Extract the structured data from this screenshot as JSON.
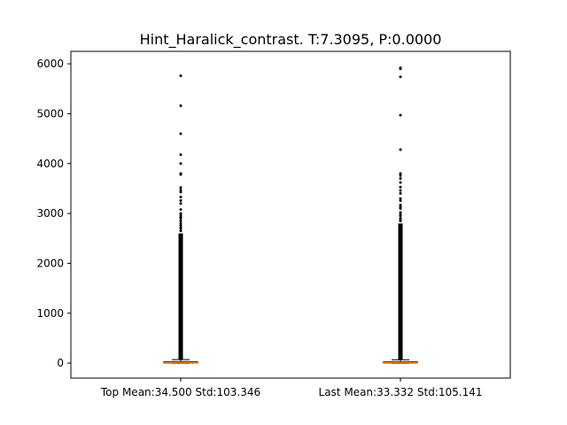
{
  "chart_data": {
    "type": "boxplot",
    "title": "Hint_Haralick_contrast. T:7.3095, P:0.0000",
    "categories": [
      "Top Mean:34.500 Std:103.346",
      "Last Mean:33.332 Std:105.141"
    ],
    "ylim": [
      -300,
      6250
    ],
    "yticks": [
      0,
      1000,
      2000,
      3000,
      4000,
      5000,
      6000
    ],
    "grid": false,
    "series": [
      {
        "q1": 3,
        "median": 12,
        "q3": 30,
        "whisker_low": 0,
        "whisker_high": 70,
        "outlier_max_dense": 2600,
        "outliers": [
          2650,
          2700,
          2720,
          2760,
          2800,
          2850,
          2900,
          2930,
          2960,
          3000,
          3080,
          3200,
          3260,
          3330,
          3430,
          3470,
          3520,
          3780,
          3800,
          4000,
          4180,
          4600,
          5160,
          5760
        ]
      },
      {
        "q1": 3,
        "median": 12,
        "q3": 28,
        "whisker_low": 0,
        "whisker_high": 65,
        "outlier_max_dense": 2800,
        "outliers": [
          2850,
          2880,
          2900,
          2950,
          2980,
          3020,
          3100,
          3130,
          3170,
          3260,
          3300,
          3400,
          3460,
          3530,
          3620,
          3700,
          3760,
          3800,
          4280,
          4970,
          5740,
          5900,
          5920
        ]
      }
    ],
    "colors": {
      "box": "#000000",
      "median": "#ff7f0e",
      "whisker": "#000000"
    }
  }
}
